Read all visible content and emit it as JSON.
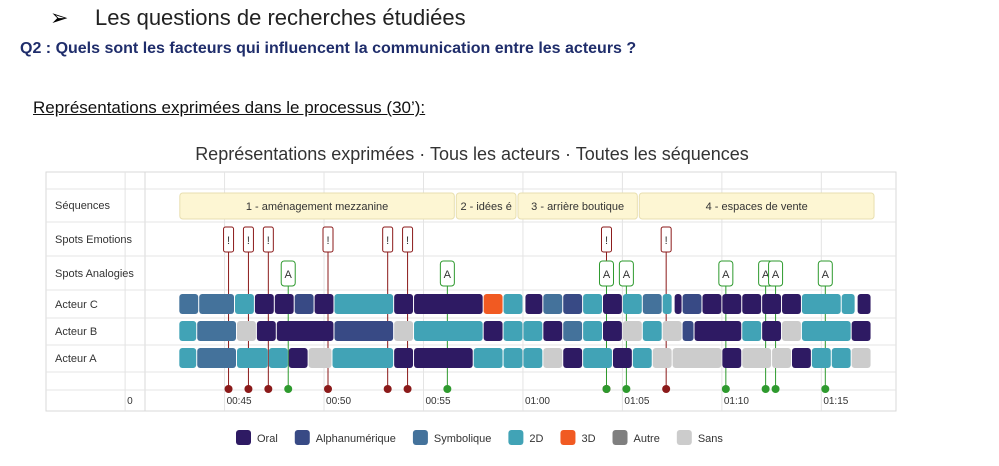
{
  "slide": {
    "bullet_symbol": "➢",
    "heading": "Les questions de recherches étudiées",
    "question": "Q2 : Quels sont les facteurs qui influencent la communication entre les acteurs ?",
    "subheading": "Représentations exprimées dans le processus (30’):"
  },
  "chart_data": {
    "type": "timeline",
    "title": "Représentations exprimées · Tous les acteurs · Toutes les séquences",
    "row_labels": [
      "Séquences",
      "Spots Emotions",
      "Spots Analogies",
      "Acteur C",
      "Acteur B",
      "Acteur A"
    ],
    "x_range": [
      "00:41",
      "01:18"
    ],
    "x_ticks": [
      {
        "t": "00:40",
        "label": "0"
      },
      {
        "t": "00:45",
        "label": "00:45"
      },
      {
        "t": "00:50",
        "label": "00:50"
      },
      {
        "t": "00:55",
        "label": "00:55"
      },
      {
        "t": "01:00",
        "label": "01:00"
      },
      {
        "t": "01:05",
        "label": "01:05"
      },
      {
        "t": "01:10",
        "label": "01:10"
      },
      {
        "t": "01:15",
        "label": "01:15"
      }
    ],
    "sequences": [
      {
        "label": "1 - aménagement mezzanine",
        "start": "00:42.7",
        "end": "00:56.6"
      },
      {
        "label": "2 - idées é",
        "start": "00:56.6",
        "end": "00:59.7"
      },
      {
        "label": "3 - arrière boutique",
        "start": "00:59.7",
        "end": "01:05.8"
      },
      {
        "label": "4 - espaces de vente",
        "start": "01:05.8",
        "end": "01:17.7"
      }
    ],
    "emotion_spots": [
      "00:45.2",
      "00:46.2",
      "00:47.2",
      "00:50.2",
      "00:53.2",
      "00:54.2",
      "01:04.2",
      "01:07.2"
    ],
    "analogy_spots": [
      "00:48.2",
      "00:56.2",
      "01:04.2",
      "01:05.2",
      "01:10.2",
      "01:12.2",
      "01:12.7",
      "01:15.2"
    ],
    "categories": [
      {
        "name": "Oral",
        "color": "#2e1a63"
      },
      {
        "name": "Alphanumérique",
        "color": "#384a85"
      },
      {
        "name": "Symbolique",
        "color": "#44729b"
      },
      {
        "name": "2D",
        "color": "#41a3b6"
      },
      {
        "name": "3D",
        "color": "#f15a22"
      },
      {
        "name": "Autre",
        "color": "#7f7f7f"
      },
      {
        "name": "Sans",
        "color": "#cccccc"
      }
    ],
    "actors": [
      {
        "name": "Acteur C",
        "segments": [
          [
            "00:42.7",
            "00:43.7",
            "Symbolique"
          ],
          [
            "00:43.7",
            "00:45.5",
            "Symbolique"
          ],
          [
            "00:45.5",
            "00:46.5",
            "2D"
          ],
          [
            "00:46.5",
            "00:47.5",
            "Oral"
          ],
          [
            "00:47.5",
            "00:48.5",
            "Oral"
          ],
          [
            "00:48.5",
            "00:49.5",
            "Alphanumérique"
          ],
          [
            "00:49.5",
            "00:50.5",
            "Oral"
          ],
          [
            "00:50.5",
            "00:53.5",
            "2D"
          ],
          [
            "00:53.5",
            "00:54.5",
            "Oral"
          ],
          [
            "00:54.5",
            "00:58.0",
            "Oral"
          ],
          [
            "00:58.0",
            "00:59.0",
            "3D"
          ],
          [
            "00:59.0",
            "01:00.0",
            "2D"
          ],
          [
            "01:00.1",
            "01:01.0",
            "Oral"
          ],
          [
            "01:01.0",
            "01:02.0",
            "Symbolique"
          ],
          [
            "01:02.0",
            "01:03.0",
            "Alphanumérique"
          ],
          [
            "01:03.0",
            "01:04.0",
            "2D"
          ],
          [
            "01:04.0",
            "01:05.0",
            "Oral"
          ],
          [
            "01:05.0",
            "01:06.0",
            "2D"
          ],
          [
            "01:06.0",
            "01:07.0",
            "Symbolique"
          ],
          [
            "01:07.0",
            "01:07.5",
            "2D"
          ],
          [
            "01:07.6",
            "01:08.0",
            "Oral"
          ],
          [
            "01:08.0",
            "01:09.0",
            "Alphanumérique"
          ],
          [
            "01:09.0",
            "01:10.0",
            "Oral"
          ],
          [
            "01:10.0",
            "01:11.0",
            "Oral"
          ],
          [
            "01:11.0",
            "01:12.0",
            "Oral"
          ],
          [
            "01:12.0",
            "01:13.0",
            "Oral"
          ],
          [
            "01:13.0",
            "01:14.0",
            "Oral"
          ],
          [
            "01:14.0",
            "01:16.0",
            "2D"
          ],
          [
            "01:16.0",
            "01:16.7",
            "2D"
          ],
          [
            "01:16.8",
            "01:17.5",
            "Oral"
          ]
        ]
      },
      {
        "name": "Acteur B",
        "segments": [
          [
            "00:42.7",
            "00:43.6",
            "2D"
          ],
          [
            "00:43.6",
            "00:45.6",
            "Symbolique"
          ],
          [
            "00:45.6",
            "00:46.6",
            "Sans"
          ],
          [
            "00:46.6",
            "00:47.6",
            "Oral"
          ],
          [
            "00:47.6",
            "00:50.5",
            "Oral"
          ],
          [
            "00:50.5",
            "00:53.5",
            "Alphanumérique"
          ],
          [
            "00:53.5",
            "00:54.5",
            "Sans"
          ],
          [
            "00:54.5",
            "00:58.0",
            "2D"
          ],
          [
            "00:58.0",
            "00:59.0",
            "Oral"
          ],
          [
            "00:59.0",
            "01:00.0",
            "2D"
          ],
          [
            "01:00.0",
            "01:01.0",
            "2D"
          ],
          [
            "01:01.0",
            "01:02.0",
            "Oral"
          ],
          [
            "01:02.0",
            "01:03.0",
            "Symbolique"
          ],
          [
            "01:03.0",
            "01:04.0",
            "2D"
          ],
          [
            "01:04.0",
            "01:05.0",
            "Oral"
          ],
          [
            "01:05.0",
            "01:06.0",
            "Sans"
          ],
          [
            "01:06.0",
            "01:07.0",
            "2D"
          ],
          [
            "01:07.0",
            "01:08.0",
            "Sans"
          ],
          [
            "01:08.0",
            "01:08.6",
            "Alphanumérique"
          ],
          [
            "01:08.6",
            "01:11.0",
            "Oral"
          ],
          [
            "01:11.0",
            "01:12.0",
            "2D"
          ],
          [
            "01:12.0",
            "01:13.0",
            "Oral"
          ],
          [
            "01:13.0",
            "01:14.0",
            "Sans"
          ],
          [
            "01:14.0",
            "01:16.5",
            "2D"
          ],
          [
            "01:16.5",
            "01:17.5",
            "Oral"
          ]
        ]
      },
      {
        "name": "Acteur A",
        "segments": [
          [
            "00:42.7",
            "00:43.6",
            "2D"
          ],
          [
            "00:43.6",
            "00:45.6",
            "Symbolique"
          ],
          [
            "00:45.6",
            "00:47.2",
            "2D"
          ],
          [
            "00:47.2",
            "00:48.2",
            "2D"
          ],
          [
            "00:48.2",
            "00:49.2",
            "Oral"
          ],
          [
            "00:49.2",
            "00:50.4",
            "Sans"
          ],
          [
            "00:50.4",
            "00:53.5",
            "2D"
          ],
          [
            "00:53.5",
            "00:54.5",
            "Oral"
          ],
          [
            "00:54.5",
            "00:57.5",
            "Oral"
          ],
          [
            "00:57.5",
            "00:59.0",
            "2D"
          ],
          [
            "00:59.0",
            "01:00.0",
            "2D"
          ],
          [
            "01:00.0",
            "01:01.0",
            "2D"
          ],
          [
            "01:01.0",
            "01:02.0",
            "Sans"
          ],
          [
            "01:02.0",
            "01:03.0",
            "Oral"
          ],
          [
            "01:03.0",
            "01:04.5",
            "2D"
          ],
          [
            "01:04.5",
            "01:05.5",
            "Oral"
          ],
          [
            "01:05.5",
            "01:06.5",
            "2D"
          ],
          [
            "01:06.5",
            "01:07.5",
            "Sans"
          ],
          [
            "01:07.5",
            "01:10.0",
            "Sans"
          ],
          [
            "01:10.0",
            "01:11.0",
            "Oral"
          ],
          [
            "01:11.0",
            "01:12.5",
            "Sans"
          ],
          [
            "01:12.5",
            "01:13.5",
            "Sans"
          ],
          [
            "01:13.5",
            "01:14.5",
            "Oral"
          ],
          [
            "01:14.5",
            "01:15.5",
            "2D"
          ],
          [
            "01:15.5",
            "01:16.5",
            "2D"
          ],
          [
            "01:16.5",
            "01:17.5",
            "Sans"
          ]
        ]
      }
    ]
  }
}
